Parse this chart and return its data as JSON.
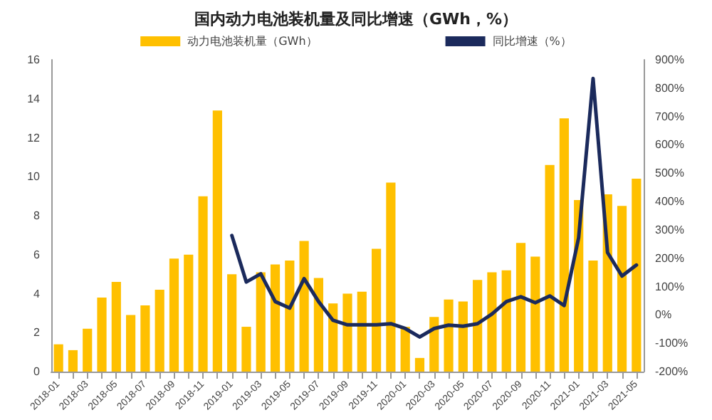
{
  "chart_data": {
    "type": "bar",
    "title": "国内动力电池装机量及同比增速（GWh，%）",
    "categories": [
      "2018-01",
      null,
      "2018-03",
      null,
      "2018-05",
      null,
      "2018-07",
      null,
      "2018-09",
      null,
      "2018-11",
      null,
      "2019-01",
      null,
      "2019-03",
      null,
      "2019-05",
      null,
      "2019-07",
      null,
      "2019-09",
      null,
      "2019-11",
      null,
      "2020-01",
      null,
      "2020-03",
      null,
      "2020-05",
      null,
      "2020-07",
      null,
      "2020-09",
      null,
      "2020-11",
      null,
      "2021-01",
      null,
      "2021-03",
      null,
      "2021-05"
    ],
    "series": [
      {
        "name": "动力电池装机量（GWh）",
        "color": "#ffc000",
        "values": [
          1.4,
          1.1,
          2.2,
          3.8,
          4.6,
          2.9,
          3.4,
          4.2,
          5.8,
          6.0,
          9.0,
          13.4,
          5.0,
          2.3,
          5.1,
          5.5,
          5.7,
          6.7,
          4.8,
          3.5,
          4.0,
          4.1,
          6.3,
          9.7,
          2.3,
          0.7,
          2.8,
          3.7,
          3.6,
          4.7,
          5.1,
          5.2,
          6.6,
          5.9,
          10.6,
          13.0,
          8.8,
          5.7,
          9.1,
          8.5,
          9.9
        ]
      },
      {
        "name": "同比增速（%）",
        "type": "line",
        "axis": "y2",
        "color": "#1b2a5c",
        "values": [
          null,
          null,
          null,
          null,
          null,
          null,
          null,
          null,
          null,
          null,
          null,
          null,
          280,
          116,
          145,
          47,
          24,
          128,
          47,
          -19,
          -35,
          -35,
          -35,
          -31,
          -48,
          -78,
          -48,
          -36,
          -40,
          -31,
          3,
          47,
          64,
          43,
          67,
          33,
          272,
          834,
          220,
          137,
          176
        ]
      }
    ],
    "ylim": [
      0,
      16
    ],
    "yticks": [
      0,
      2,
      4,
      6,
      8,
      10,
      12,
      14,
      16
    ],
    "y2lim": [
      -200,
      900
    ],
    "y2ticks": [
      {
        "value": -200,
        "label": "-200%"
      },
      {
        "value": -100,
        "label": "-100%"
      },
      {
        "value": 0,
        "label": "0%"
      },
      {
        "value": 100,
        "label": "100%"
      },
      {
        "value": 200,
        "label": "200%"
      },
      {
        "value": 300,
        "label": "300%"
      },
      {
        "value": 400,
        "label": "400%"
      },
      {
        "value": 500,
        "label": "500%"
      },
      {
        "value": 600,
        "label": "600%"
      },
      {
        "value": 700,
        "label": "700%"
      },
      {
        "value": 800,
        "label": "800%"
      },
      {
        "value": 900,
        "label": "900%"
      }
    ],
    "grid": false,
    "legend": "top",
    "marker": "none",
    "line_style": "solid"
  }
}
